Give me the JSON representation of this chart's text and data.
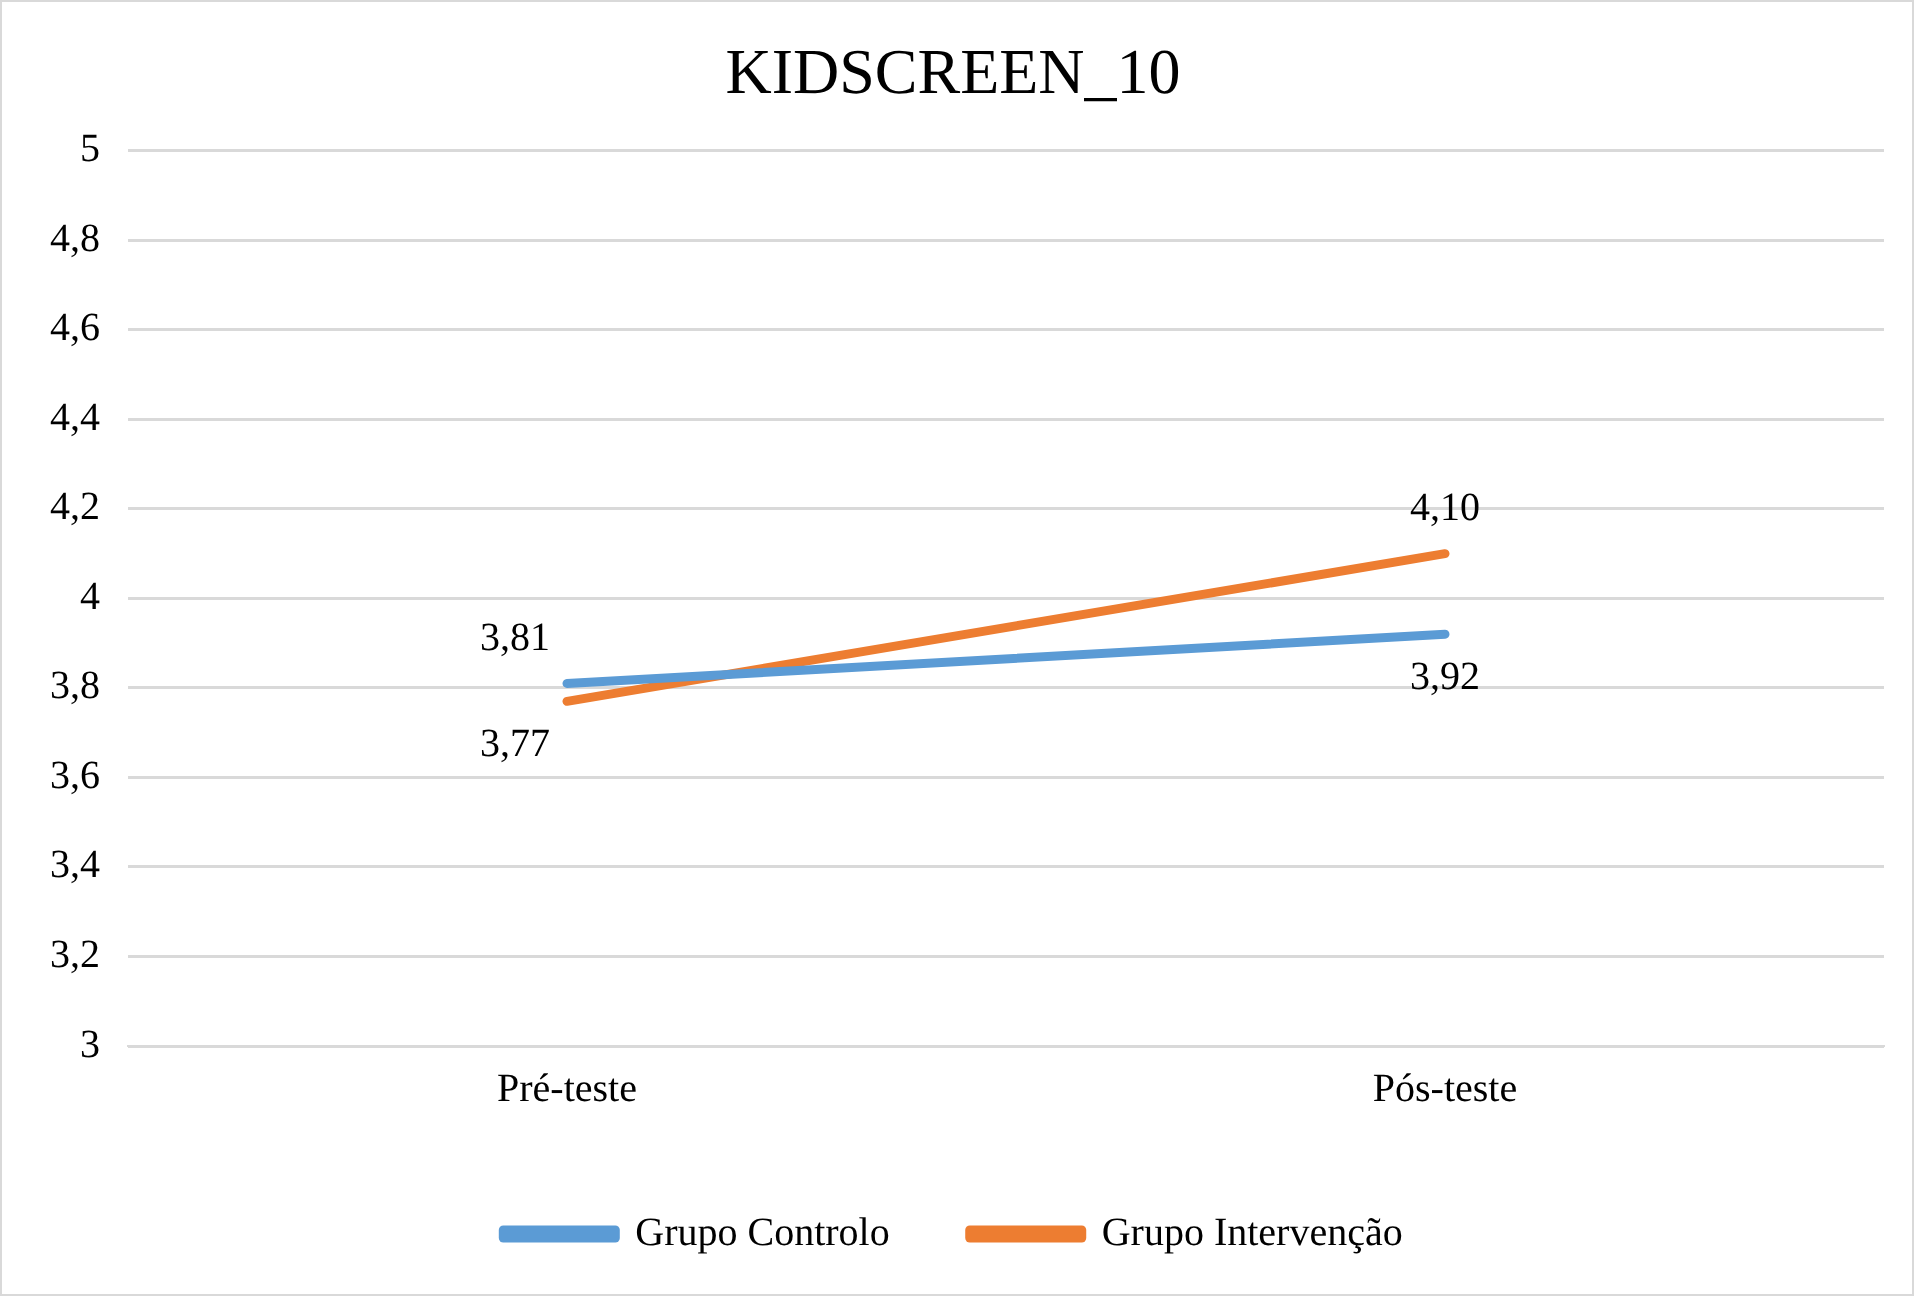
{
  "chart_data": {
    "type": "line",
    "title": "KIDSCREEN_10",
    "categories": [
      "Pré-teste",
      "Pós-teste"
    ],
    "series": [
      {
        "name": "Grupo Controlo",
        "color": "#5b9bd5",
        "values": [
          3.81,
          3.92
        ],
        "value_labels": [
          "3,81",
          "3,92"
        ]
      },
      {
        "name": "Grupo Intervenção",
        "color": "#ed7d31",
        "values": [
          3.77,
          4.1
        ],
        "value_labels": [
          "3,77",
          "4,10"
        ]
      }
    ],
    "ylim": [
      3,
      5
    ],
    "yticks": [
      3,
      {
        "value": 3.2,
        "label": "3,2"
      },
      {
        "value": 3.4,
        "label": "3,4"
      },
      {
        "value": 3.6,
        "label": "3,6"
      },
      {
        "value": 3.8,
        "label": "3,8"
      },
      4,
      {
        "value": 4.2,
        "label": "4,2"
      },
      {
        "value": 4.4,
        "label": "4,4"
      },
      {
        "value": 4.6,
        "label": "4,6"
      },
      {
        "value": 4.8,
        "label": "4,8"
      },
      5
    ],
    "grid": "y",
    "legend": "bottom",
    "marker": "none",
    "line_style": "solid"
  }
}
